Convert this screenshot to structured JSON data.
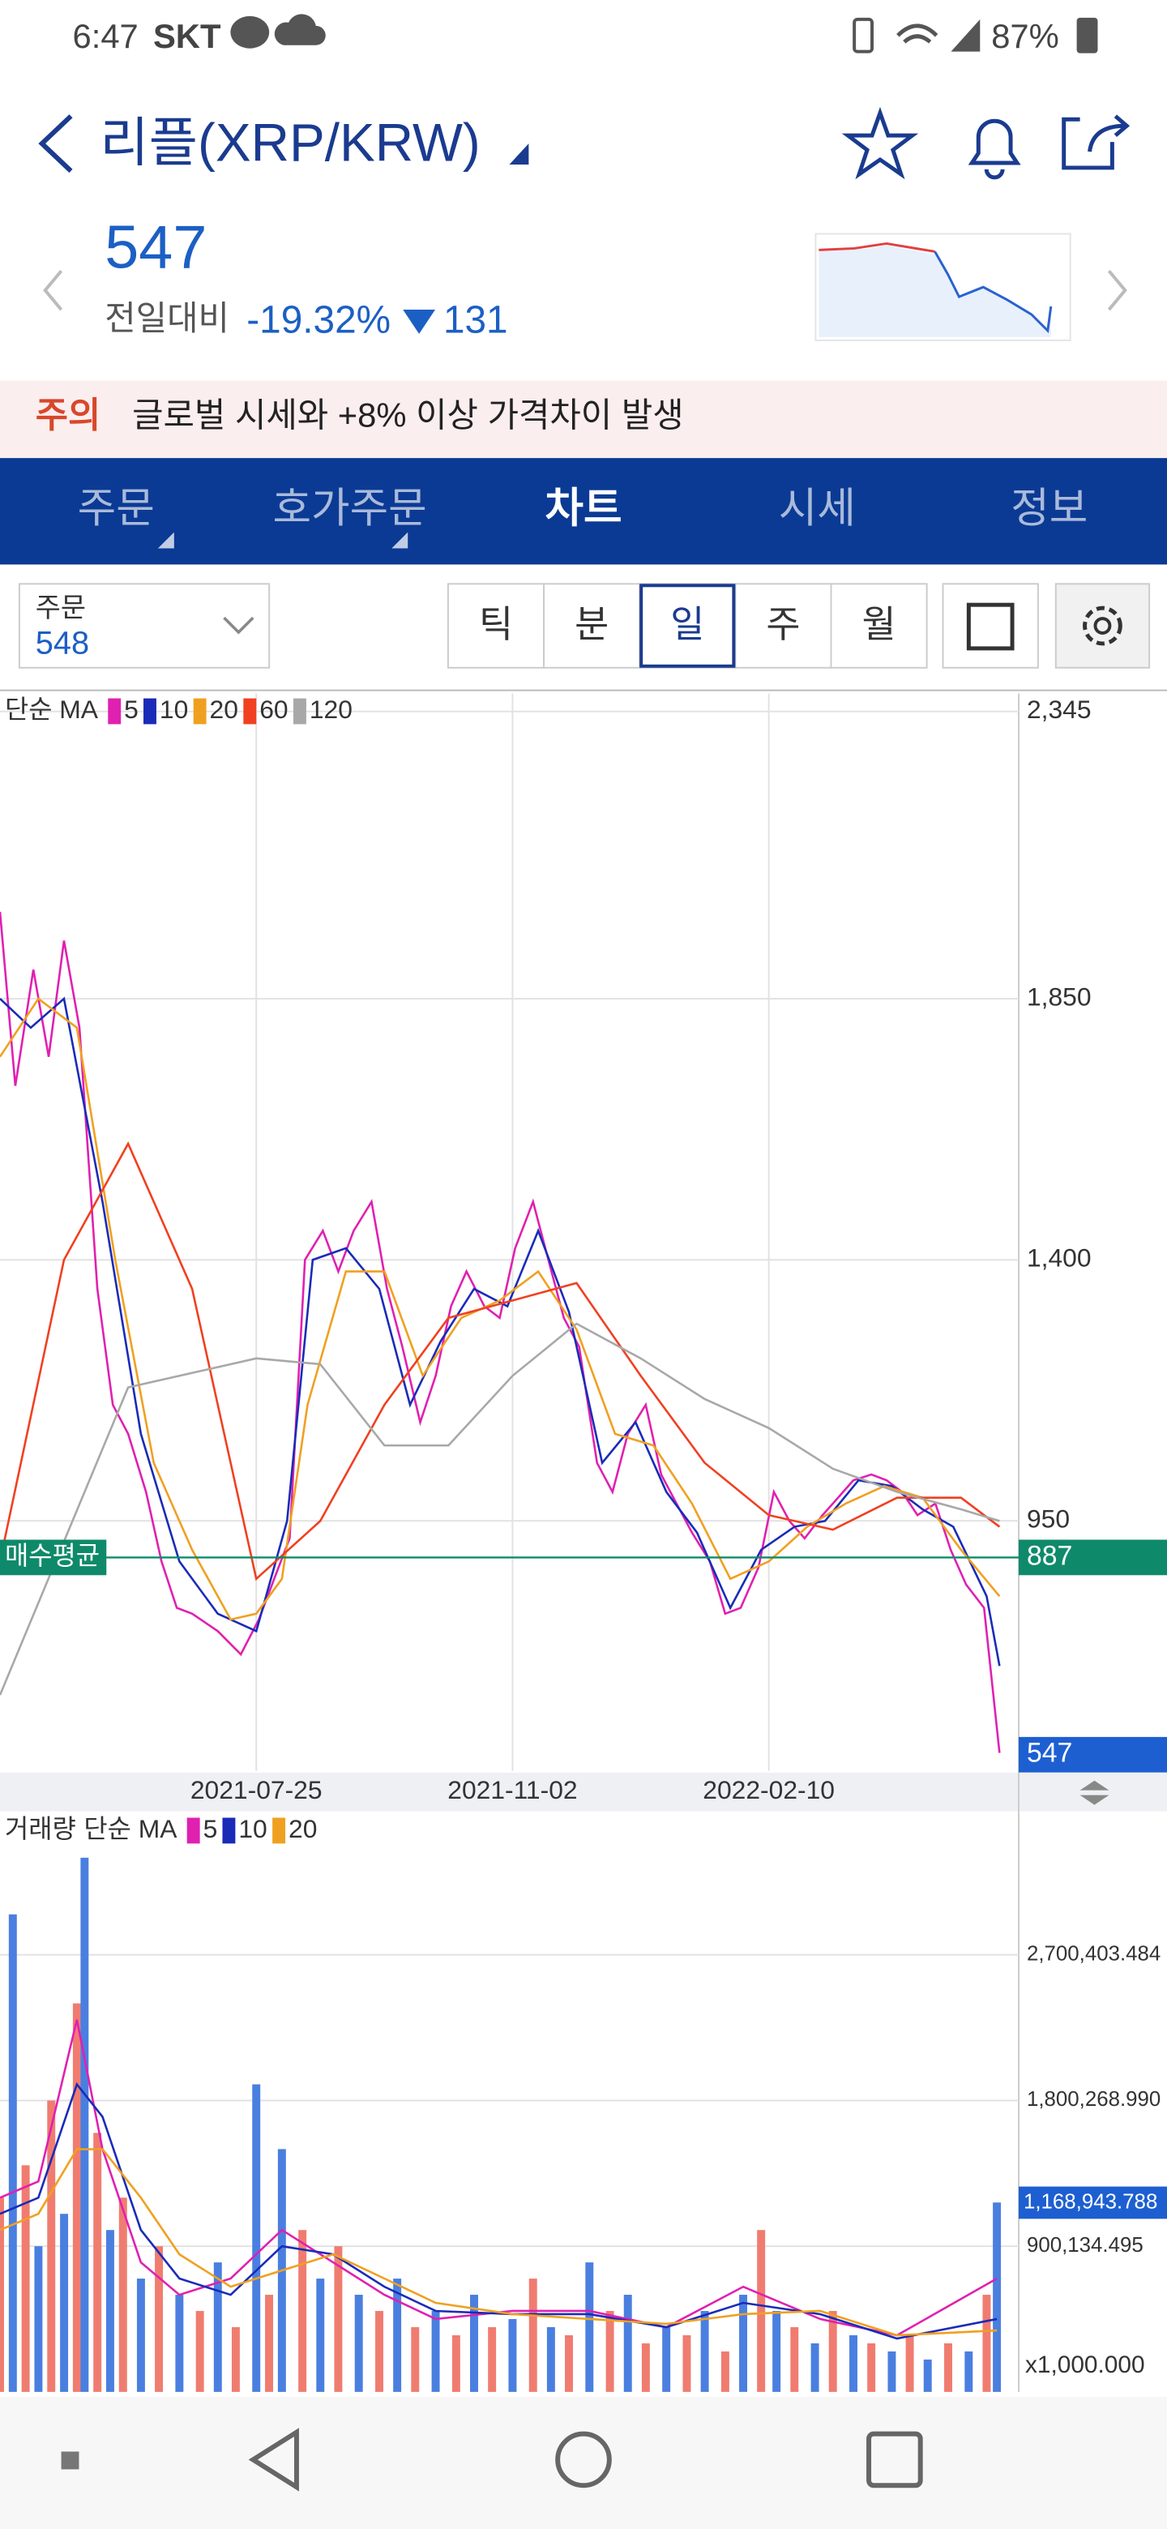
{
  "status_bar": {
    "time": "6:47",
    "carrier": "SKT",
    "battery": "87%"
  },
  "header": {
    "title": "리플(XRP/KRW)",
    "price": "547",
    "change_label": "전일대비",
    "change_percent": "-19.32%",
    "change_amount": "131"
  },
  "notice": {
    "tag": "주의",
    "text": "글로벌 시세와 +8% 이상 가격차이 발생"
  },
  "tabs": {
    "items": [
      "주문",
      "호가주문",
      "차트",
      "시세",
      "정보"
    ],
    "active": 2
  },
  "toolbar": {
    "order_label": "주문",
    "order_value": "548",
    "periods": [
      "틱",
      "분",
      "일",
      "주",
      "월"
    ],
    "selected_period": 2
  },
  "chart_data": [
    {
      "type": "line",
      "legend_title": "단순 MA",
      "xlim": [
        0,
        395
      ],
      "xticks": [
        {
          "value": 100,
          "label": "2021-07-25"
        },
        {
          "value": 200,
          "label": "2021-11-02"
        },
        {
          "value": 300,
          "label": "2022-02-10"
        }
      ],
      "ylim": [
        519,
        2376
      ],
      "yticks": [
        {
          "value": 2345,
          "label": "2,345"
        },
        {
          "value": 1850,
          "label": "1,850"
        },
        {
          "value": 1400,
          "label": "1,400"
        },
        950
      ],
      "grid": true,
      "average": {
        "name": "매수평균",
        "value": 887,
        "label": "887",
        "color": "#0e8a6a"
      },
      "current": {
        "value": 547,
        "label": "547",
        "color": "#1d5fd1"
      },
      "series": [
        {
          "name": "5",
          "color": "#e020b0",
          "x": [
            0,
            6,
            13,
            19,
            25,
            31,
            38,
            44,
            50,
            57,
            63,
            69,
            75,
            85,
            94,
            101,
            107,
            113,
            119,
            126,
            132,
            138,
            145,
            151,
            157,
            164,
            170,
            176,
            182,
            189,
            195,
            201,
            208,
            214,
            220,
            226,
            233,
            239,
            245,
            252,
            258,
            264,
            270,
            277,
            283,
            289,
            296,
            302,
            308,
            314,
            321,
            327,
            333,
            340,
            346,
            352,
            358,
            365,
            371,
            377,
            384,
            390
          ],
          "values": [
            2000,
            1700,
            1900,
            1750,
            1950,
            1800,
            1350,
            1150,
            1100,
            1000,
            880,
            800,
            790,
            760,
            720,
            780,
            850,
            920,
            1400,
            1450,
            1380,
            1450,
            1500,
            1350,
            1250,
            1120,
            1200,
            1320,
            1380,
            1320,
            1300,
            1420,
            1500,
            1400,
            1300,
            1250,
            1050,
            1000,
            1100,
            1150,
            1030,
            980,
            930,
            880,
            790,
            800,
            870,
            1000,
            950,
            920,
            960,
            990,
            1020,
            1030,
            1020,
            1000,
            960,
            980,
            900,
            840,
            800,
            550
          ]
        },
        {
          "name": "10",
          "color": "#1a2bb8",
          "x": [
            0,
            12,
            25,
            40,
            55,
            70,
            85,
            100,
            112,
            122,
            135,
            148,
            160,
            172,
            185,
            198,
            210,
            222,
            235,
            248,
            260,
            272,
            285,
            297,
            310,
            322,
            335,
            348,
            360,
            372,
            385,
            390
          ],
          "values": [
            1850,
            1800,
            1850,
            1500,
            1100,
            880,
            790,
            760,
            950,
            1400,
            1420,
            1350,
            1150,
            1260,
            1350,
            1320,
            1450,
            1310,
            1050,
            1120,
            1000,
            930,
            800,
            900,
            940,
            950,
            1020,
            1010,
            970,
            940,
            820,
            700
          ]
        },
        {
          "name": "20",
          "color": "#f0a020",
          "x": [
            0,
            15,
            30,
            45,
            60,
            75,
            90,
            100,
            110,
            120,
            135,
            150,
            165,
            180,
            195,
            210,
            225,
            240,
            255,
            270,
            285,
            300,
            315,
            330,
            345,
            360,
            375,
            390
          ],
          "values": [
            1750,
            1850,
            1800,
            1400,
            1050,
            900,
            780,
            790,
            850,
            1150,
            1380,
            1380,
            1200,
            1300,
            1330,
            1380,
            1280,
            1100,
            1080,
            980,
            850,
            880,
            940,
            980,
            1010,
            990,
            900,
            820
          ]
        },
        {
          "name": "60",
          "color": "#f04020",
          "x": [
            0,
            25,
            50,
            75,
            100,
            125,
            150,
            175,
            200,
            225,
            250,
            275,
            300,
            325,
            350,
            375,
            390
          ],
          "values": [
            880,
            1400,
            1600,
            1350,
            850,
            950,
            1150,
            1300,
            1330,
            1360,
            1200,
            1050,
            960,
            935,
            990,
            990,
            940
          ]
        },
        {
          "name": "120",
          "color": "#a8a8a8",
          "x": [
            0,
            50,
            100,
            125,
            150,
            175,
            200,
            225,
            250,
            275,
            300,
            325,
            350,
            375,
            390
          ],
          "values": [
            650,
            1180,
            1230,
            1220,
            1080,
            1080,
            1200,
            1290,
            1230,
            1160,
            1110,
            1040,
            1000,
            970,
            950
          ]
        }
      ]
    },
    {
      "type": "bar",
      "title": "거래량",
      "legend_title": "단순 MA",
      "unit_label": "x1,000.000",
      "xlim": [
        0,
        395
      ],
      "ylim": [
        0,
        3567000
      ],
      "yticks": [
        {
          "value": 2700403.484,
          "label": "2,700,403.484"
        },
        {
          "value": 1800268.99,
          "label": "1,800,268.990"
        },
        {
          "value": 900134.495,
          "label": "900,134.495"
        }
      ],
      "grid": true,
      "bar_colors": [
        "#f07c70",
        "#4a7fe0"
      ],
      "current": {
        "value": 1168943.788,
        "label": "1,168,943.788",
        "color": "#1d5fd1"
      },
      "x": [
        0,
        5,
        10,
        15,
        20,
        25,
        30,
        33,
        38,
        43,
        48,
        55,
        62,
        70,
        78,
        85,
        92,
        100,
        105,
        110,
        118,
        125,
        132,
        140,
        148,
        155,
        162,
        170,
        178,
        185,
        192,
        200,
        208,
        215,
        222,
        230,
        238,
        245,
        252,
        260,
        268,
        275,
        283,
        290,
        297,
        303,
        310,
        318,
        325,
        333,
        340,
        348,
        355,
        362,
        370,
        378,
        385,
        389
      ],
      "values": [
        1200000,
        2950000,
        1400000,
        900000,
        1800000,
        1100000,
        2400000,
        3300000,
        1600000,
        1000000,
        1200000,
        700000,
        900000,
        600000,
        500000,
        800000,
        400000,
        1900000,
        600000,
        1500000,
        1000000,
        700000,
        900000,
        600000,
        500000,
        700000,
        400000,
        500000,
        350000,
        600000,
        400000,
        450000,
        700000,
        400000,
        350000,
        800000,
        500000,
        600000,
        300000,
        400000,
        350000,
        500000,
        250000,
        600000,
        1000000,
        500000,
        400000,
        300000,
        500000,
        350000,
        300000,
        250000,
        350000,
        200000,
        300000,
        250000,
        600000,
        1170000
      ],
      "series": [
        {
          "name": "5",
          "color": "#e020b0",
          "x": [
            0,
            15,
            30,
            40,
            55,
            70,
            90,
            110,
            130,
            150,
            170,
            200,
            230,
            260,
            290,
            320,
            350,
            389
          ],
          "values": [
            1200000,
            1300000,
            2300000,
            1500000,
            800000,
            600000,
            700000,
            1000000,
            800000,
            600000,
            450000,
            500000,
            500000,
            400000,
            650000,
            450000,
            350000,
            700000
          ]
        },
        {
          "name": "10",
          "color": "#1a2bb8",
          "x": [
            0,
            15,
            30,
            40,
            55,
            70,
            90,
            110,
            130,
            150,
            170,
            200,
            230,
            260,
            290,
            320,
            350,
            389
          ],
          "values": [
            1100000,
            1200000,
            1900000,
            1700000,
            1000000,
            700000,
            600000,
            900000,
            850000,
            650000,
            500000,
            480000,
            480000,
            400000,
            550000,
            480000,
            330000,
            450000
          ]
        },
        {
          "name": "20",
          "color": "#f0a020",
          "x": [
            0,
            15,
            30,
            40,
            55,
            70,
            90,
            110,
            130,
            150,
            170,
            200,
            230,
            260,
            290,
            320,
            350,
            389
          ],
          "values": [
            1000000,
            1100000,
            1500000,
            1500000,
            1200000,
            850000,
            650000,
            750000,
            850000,
            700000,
            550000,
            480000,
            450000,
            420000,
            480000,
            500000,
            350000,
            380000
          ]
        }
      ]
    }
  ]
}
